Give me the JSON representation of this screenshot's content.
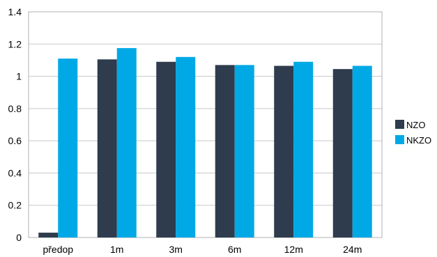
{
  "chart_data": {
    "type": "bar",
    "title": "",
    "xlabel": "",
    "ylabel": "",
    "ylim": [
      0,
      1.4
    ],
    "yticks": [
      "0",
      "0.2",
      "0.4",
      "0.6",
      "0.8",
      "1",
      "1.2",
      "1.4"
    ],
    "categories": [
      "předop",
      "1m",
      "3m",
      "6m",
      "12m",
      "24m"
    ],
    "series": [
      {
        "name": "NZO",
        "color": "#2e3c4d",
        "values": [
          0.03,
          1.105,
          1.09,
          1.07,
          1.065,
          1.045
        ]
      },
      {
        "name": "NKZO",
        "color": "#00a9e6",
        "values": [
          1.11,
          1.175,
          1.12,
          1.07,
          1.09,
          1.065
        ]
      }
    ],
    "grid": true,
    "legend_position": "right"
  }
}
